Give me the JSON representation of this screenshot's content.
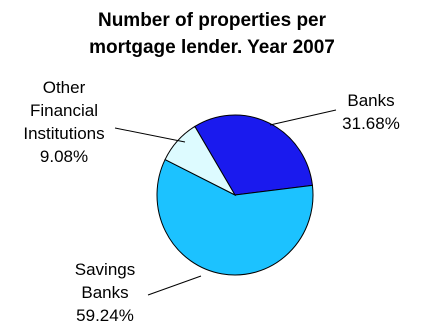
{
  "chart_data": {
    "type": "pie",
    "title_line1": "Number of properties per",
    "title_line2": "mortgage lender. Year 2007",
    "slices": [
      {
        "label_lines": [
          "Banks"
        ],
        "percent_label": "31.68%",
        "value": 31.68,
        "color": "#1a1aee"
      },
      {
        "label_lines": [
          "Savings",
          "Banks"
        ],
        "percent_label": "59.24%",
        "value": 59.24,
        "color": "#1cc2ff"
      },
      {
        "label_lines": [
          "Other",
          "Financial",
          "Institutions"
        ],
        "percent_label": "9.08%",
        "value": 9.08,
        "color": "#ddfbff"
      }
    ]
  }
}
